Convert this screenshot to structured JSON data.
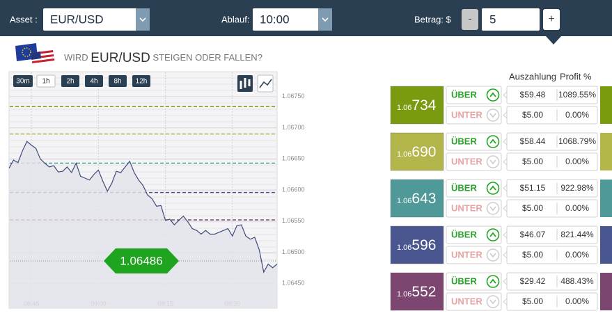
{
  "toolbar": {
    "asset_label": "Asset :",
    "asset_value": "EUR/USD",
    "expiry_label": "Ablauf:",
    "expiry_value": "10:00",
    "amount_label": "Betrag: $",
    "minus": "-",
    "amount_value": "5",
    "plus": "+"
  },
  "question": {
    "prefix": "WIRD",
    "asset": "EUR/USD",
    "suffix": "STEIGEN ODER FALLEN?"
  },
  "timeframes": [
    "30m",
    "1h",
    "2h",
    "4h",
    "8h",
    "12h"
  ],
  "table_headers": {
    "payout": "Auszahlung",
    "profit": "Profit %"
  },
  "rows": [
    {
      "prefix": "1.06",
      "digits": "734",
      "up": {
        "label": "ÜBER",
        "payout": "$59.48",
        "profit": "1089.55%"
      },
      "down": {
        "label": "UNTER",
        "payout": "$5.00",
        "profit": "0.00%"
      }
    },
    {
      "prefix": "1.06",
      "digits": "690",
      "up": {
        "label": "ÜBER",
        "payout": "$58.44",
        "profit": "1068.79%"
      },
      "down": {
        "label": "UNTER",
        "payout": "$5.00",
        "profit": "0.00%"
      }
    },
    {
      "prefix": "1.06",
      "digits": "643",
      "up": {
        "label": "ÜBER",
        "payout": "$51.15",
        "profit": "922.98%"
      },
      "down": {
        "label": "UNTER",
        "payout": "$5.00",
        "profit": "0.00%"
      }
    },
    {
      "prefix": "1.06",
      "digits": "596",
      "up": {
        "label": "ÜBER",
        "payout": "$46.07",
        "profit": "821.44%"
      },
      "down": {
        "label": "UNTER",
        "payout": "$5.00",
        "profit": "0.00%"
      }
    },
    {
      "prefix": "1.06",
      "digits": "552",
      "up": {
        "label": "ÜBER",
        "payout": "$29.42",
        "profit": "488.43%"
      },
      "down": {
        "label": "UNTER",
        "payout": "$5.00",
        "profit": "0.00%"
      }
    }
  ],
  "chart_data": {
    "type": "line",
    "x": [
      "08:40",
      "08:41",
      "08:42",
      "08:43",
      "08:44",
      "08:45",
      "08:46",
      "08:47",
      "08:48",
      "08:49",
      "08:50",
      "08:51",
      "08:52",
      "08:53",
      "08:54",
      "08:55",
      "08:56",
      "08:57",
      "08:58",
      "08:59",
      "09:00",
      "09:01",
      "09:02",
      "09:03",
      "09:04",
      "09:05",
      "09:06",
      "09:07",
      "09:08",
      "09:09",
      "09:10",
      "09:11",
      "09:12",
      "09:13",
      "09:14",
      "09:15",
      "09:16",
      "09:17",
      "09:18",
      "09:19",
      "09:20",
      "09:21",
      "09:22",
      "09:23",
      "09:24",
      "09:25",
      "09:26",
      "09:27",
      "09:28",
      "09:29",
      "09:30",
      "09:31",
      "09:32",
      "09:33",
      "09:34",
      "09:35",
      "09:36",
      "09:37",
      "09:38",
      "09:39",
      "09:40"
    ],
    "series": [
      {
        "color": "#3e4a78",
        "values": [
          1.06635,
          1.06648,
          1.06644,
          1.06663,
          1.06678,
          1.06672,
          1.06667,
          1.0665,
          1.06643,
          1.06637,
          1.06639,
          1.06629,
          1.0663,
          1.06637,
          1.06628,
          1.06643,
          1.06622,
          1.06619,
          1.06616,
          1.06625,
          1.06632,
          1.06614,
          1.06598,
          1.06611,
          1.0663,
          1.06628,
          1.06637,
          1.06646,
          1.06628,
          1.06616,
          1.06607,
          1.06592,
          1.06586,
          1.06574,
          1.06575,
          1.06551,
          1.06553,
          1.06544,
          1.06551,
          1.06558,
          1.06549,
          1.06538,
          1.06535,
          1.06529,
          1.06535,
          1.06529,
          1.06529,
          1.06532,
          1.06535,
          1.06538,
          1.06526,
          1.06543,
          1.06544,
          1.06526,
          1.06521,
          1.06524,
          1.06504,
          1.06468,
          1.06481,
          1.06475,
          1.06481
        ]
      }
    ],
    "xlim": [
      "08:40",
      "09:40"
    ],
    "xticks": [
      "08:45",
      "09:00",
      "09:15",
      "09:30"
    ],
    "ylim": [
      1.0641,
      1.0679
    ],
    "yticks": [
      {
        "value": 1.0645,
        "label": "1.06450"
      },
      {
        "value": 1.065,
        "label": "1.06500"
      },
      {
        "value": 1.0655,
        "label": "1.06550"
      },
      {
        "value": 1.066,
        "label": "1.06600"
      },
      {
        "value": 1.0665,
        "label": "1.06650"
      },
      {
        "value": 1.067,
        "label": "1.06700"
      },
      {
        "value": 1.0675,
        "label": "1.06750"
      }
    ],
    "current": 1.06486,
    "current_color": "#1ea41e",
    "levels": [
      {
        "value": 1.06734,
        "color": "#7a9b10"
      },
      {
        "value": 1.0669,
        "color": "#b3b64b"
      },
      {
        "value": 1.06643,
        "color": "#4f9a98"
      },
      {
        "value": 1.06596,
        "color": "#4a5690"
      },
      {
        "value": 1.06552,
        "color": "#7c4670"
      }
    ],
    "grid": true
  }
}
